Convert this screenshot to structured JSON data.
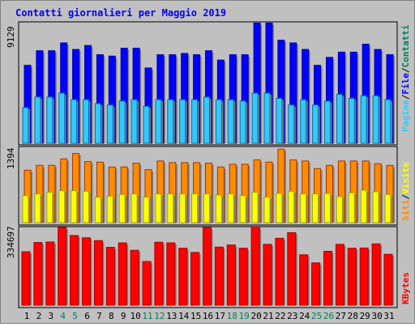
{
  "chart_data": {
    "type": "bar",
    "title": "Contatti giornalieri per Maggio 2019",
    "x": [
      "1",
      "2",
      "3",
      "4",
      "5",
      "6",
      "7",
      "8",
      "9",
      "10",
      "11",
      "12",
      "13",
      "14",
      "15",
      "16",
      "17",
      "18",
      "19",
      "20",
      "21",
      "22",
      "23",
      "24",
      "25",
      "26",
      "27",
      "28",
      "29",
      "30",
      "31"
    ],
    "weekend_days": [
      "4",
      "5",
      "11",
      "12",
      "18",
      "19",
      "25",
      "26"
    ],
    "panels": [
      {
        "max_label": "9129",
        "ylim": [
          0,
          9129
        ],
        "legend": [
          "Pagine",
          "File",
          "Contatti"
        ],
        "series": [
          {
            "name": "Pagine",
            "values": [
              2700,
              3500,
              3500,
              3800,
              3300,
              3300,
              3000,
              2900,
              3200,
              3300,
              2800,
              3300,
              3300,
              3300,
              3300,
              3500,
              3300,
              3300,
              3200,
              3800,
              3800,
              3400,
              2900,
              3300,
              2900,
              3200,
              3700,
              3400,
              3600,
              3600,
              3300
            ],
            "color": "#33c8ff"
          },
          {
            "name": "Contatti",
            "values": [
              5900,
              7000,
              7000,
              7600,
              7100,
              7400,
              6700,
              6600,
              7200,
              7200,
              5700,
              6700,
              6700,
              6800,
              6700,
              7000,
              6300,
              6700,
              6700,
              9100,
              9100,
              7800,
              7600,
              7100,
              5900,
              6500,
              6900,
              6900,
              7500,
              7100,
              6700
            ],
            "color": "#0000ff"
          }
        ]
      },
      {
        "max_label": "1394",
        "ylim": [
          0,
          1394
        ],
        "legend": [
          "Siti",
          "Visite"
        ],
        "series": [
          {
            "name": "Visite",
            "values": [
              500,
              530,
              560,
              590,
              590,
              580,
              470,
              490,
              520,
              530,
              470,
              530,
              530,
              530,
              530,
              530,
              510,
              530,
              500,
              560,
              470,
              540,
              580,
              530,
              530,
              540,
              480,
              550,
              600,
              570,
              520
            ],
            "color": "#ffff00"
          },
          {
            "name": "Siti",
            "values": [
              970,
              1060,
              1060,
              1180,
              1280,
              1130,
              1120,
              1030,
              1030,
              1100,
              980,
              1140,
              1110,
              1110,
              1110,
              1100,
              1030,
              1080,
              1080,
              1160,
              1120,
              1360,
              1160,
              1140,
              1000,
              1060,
              1140,
              1140,
              1140,
              1090,
              1060
            ],
            "color": "#ff8c00"
          }
        ]
      },
      {
        "max_label": "334697",
        "ylim": [
          0,
          334697
        ],
        "legend": [
          "KBytes"
        ],
        "series": [
          {
            "name": "KBytes",
            "values": [
              230000,
              270000,
              272000,
              335000,
              300000,
              290000,
              278000,
              249000,
              268000,
              236000,
              188000,
              271000,
              268000,
              245000,
              227000,
              334000,
              250000,
              259000,
              245000,
              337000,
              262000,
              288000,
              312000,
              217000,
              182000,
              232000,
              262000,
              245000,
              246000,
              264000,
              219000
            ],
            "color": "#ff0000"
          }
        ]
      }
    ]
  },
  "colors": {
    "background": "#c0c0c0",
    "plot_bg": "#c0c0c0",
    "title": "#0000ff",
    "weekend_label": "#00805a",
    "weekday_label": "#000000",
    "legend_pagine": "#33c8ff",
    "legend_file": "#0000ff",
    "legend_contatti": "#00805a",
    "legend_siti": "#ff8c00",
    "legend_visite": "#ffff00",
    "legend_kbytes": "#ff0000"
  }
}
